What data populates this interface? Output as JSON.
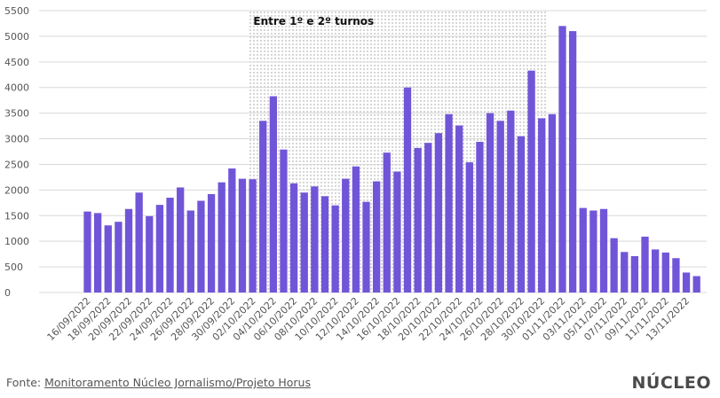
{
  "chart_data": {
    "type": "bar",
    "title": "",
    "xlabel": "",
    "ylabel": "",
    "ylim": [
      0,
      5500
    ],
    "yticks": [
      0,
      500,
      1000,
      1500,
      2000,
      2500,
      3000,
      3500,
      4000,
      4500,
      5000,
      5500
    ],
    "grid": "horizontal",
    "bar_color": "#7155d8",
    "categories": [
      "16/09/2022",
      "17/09/2022",
      "18/09/2022",
      "19/09/2022",
      "20/09/2022",
      "21/09/2022",
      "22/09/2022",
      "23/09/2022",
      "24/09/2022",
      "25/09/2022",
      "26/09/2022",
      "27/09/2022",
      "28/09/2022",
      "29/09/2022",
      "30/09/2022",
      "01/10/2022",
      "02/10/2022",
      "03/10/2022",
      "04/10/2022",
      "05/10/2022",
      "06/10/2022",
      "07/10/2022",
      "08/10/2022",
      "09/10/2022",
      "10/10/2022",
      "11/10/2022",
      "12/10/2022",
      "13/10/2022",
      "14/10/2022",
      "15/10/2022",
      "16/10/2022",
      "17/10/2022",
      "18/10/2022",
      "19/10/2022",
      "20/10/2022",
      "21/10/2022",
      "22/10/2022",
      "23/10/2022",
      "24/10/2022",
      "25/10/2022",
      "26/10/2022",
      "27/10/2022",
      "28/10/2022",
      "29/10/2022",
      "30/10/2022",
      "31/10/2022",
      "01/11/2022",
      "02/11/2022",
      "03/11/2022",
      "04/11/2022",
      "05/11/2022",
      "06/11/2022",
      "07/11/2022",
      "08/11/2022",
      "09/11/2022",
      "10/11/2022",
      "11/11/2022",
      "12/11/2022",
      "13/11/2022",
      "14/11/2022"
    ],
    "tick_labels_shown": [
      "16/09/2022",
      "18/09/2022",
      "20/09/2022",
      "22/09/2022",
      "24/09/2022",
      "26/09/2022",
      "28/09/2022",
      "30/09/2022",
      "02/10/2022",
      "04/10/2022",
      "06/10/2022",
      "08/10/2022",
      "10/10/2022",
      "12/10/2022",
      "14/10/2022",
      "16/10/2022",
      "18/10/2022",
      "20/10/2022",
      "22/10/2022",
      "24/10/2022",
      "26/10/2022",
      "28/10/2022",
      "30/10/2022",
      "01/11/2022",
      "03/11/2022",
      "05/11/2022",
      "07/11/2022",
      "09/11/2022",
      "11/11/2022",
      "13/11/2022"
    ],
    "values": [
      1580,
      1550,
      1310,
      1380,
      1630,
      1950,
      1490,
      1710,
      1850,
      2050,
      1600,
      1790,
      1920,
      2150,
      2420,
      2220,
      2210,
      3350,
      3830,
      2790,
      2130,
      1950,
      2070,
      1880,
      1700,
      2220,
      2460,
      1770,
      2170,
      2730,
      2360,
      4000,
      2820,
      2920,
      3110,
      3480,
      3260,
      2540,
      2940,
      3500,
      3350,
      3550,
      3050,
      4330,
      3400,
      3480,
      5200,
      5100,
      1650,
      1600,
      1630,
      1060,
      790,
      710,
      1090,
      840,
      780,
      670,
      390,
      320
    ],
    "annotation": {
      "text": "Entre 1º e 2º turnos",
      "start": "02/10/2022",
      "end": "30/10/2022"
    }
  },
  "footer": {
    "source_prefix": "Fonte: ",
    "source_link": "Monitoramento Núcleo Jornalismo/Projeto Horus",
    "logo": "NÚCLEO"
  }
}
